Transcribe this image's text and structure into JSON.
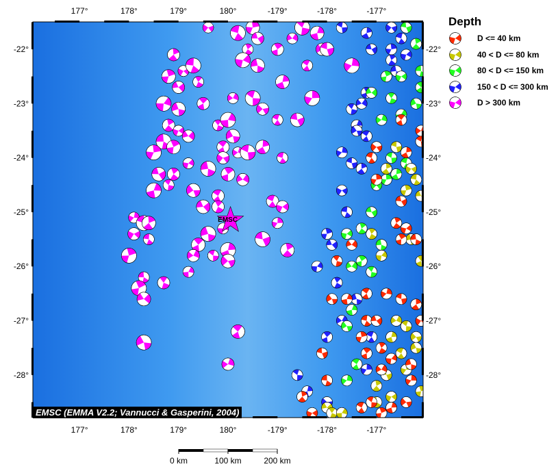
{
  "map": {
    "extent": {
      "lon": [
        176.1,
        -175.9
      ],
      "lat": [
        -28.8,
        -21.5
      ]
    },
    "lon_ticks": [
      {
        "lon": 177,
        "label": "177°"
      },
      {
        "lon": 178,
        "label": "178°"
      },
      {
        "lon": 179,
        "label": "179°"
      },
      {
        "lon": 180,
        "label": "180°"
      },
      {
        "lon": -179,
        "label": "-179°"
      },
      {
        "lon": -178,
        "label": "-178°"
      },
      {
        "lon": -177,
        "label": "-177°"
      }
    ],
    "lat_ticks": [
      {
        "lat": -22,
        "label": "-22°"
      },
      {
        "lat": -23,
        "label": "-23°"
      },
      {
        "lat": -24,
        "label": "-24°"
      },
      {
        "lat": -25,
        "label": "-25°"
      },
      {
        "lat": -26,
        "label": "-26°"
      },
      {
        "lat": -27,
        "label": "-27°"
      },
      {
        "lat": -28,
        "label": "-28°"
      }
    ],
    "ocean_colors": [
      "#1a6fe0",
      "#3f9af0",
      "#6ab4f2"
    ],
    "marker": {
      "label": "EMSC",
      "lon": 180.05,
      "lat": -25.15,
      "color": "#ff00ff"
    },
    "credit": "EMSC (EMMA V2.2; Vannucci & Gasperini, 2004)"
  },
  "legend": {
    "title": "Depth",
    "classes": [
      {
        "label": "D <= 40 km",
        "color": "#ff2a00"
      },
      {
        "label": "40 < D <= 80 km",
        "color": "#c8c800"
      },
      {
        "label": "80 < D <= 150 km",
        "color": "#22ff22"
      },
      {
        "label": "150 < D <= 300 km",
        "color": "#2222ff"
      },
      {
        "label": "D > 300 km",
        "color": "#ff00ff"
      }
    ]
  },
  "scale_bar": {
    "labels": [
      "0 km",
      "100 km",
      "200 km"
    ],
    "km": [
      0,
      100,
      200
    ]
  },
  "events": [
    [
      179.6,
      -21.6,
      4
    ],
    [
      -179.8,
      -21.7,
      4
    ],
    [
      -179.5,
      -21.6,
      4
    ],
    [
      -179.4,
      -21.8,
      4
    ],
    [
      -179.6,
      -22.0,
      4
    ],
    [
      -179.7,
      -22.2,
      4
    ],
    [
      -179.4,
      -22.3,
      4
    ],
    [
      -179.0,
      -22.0,
      4
    ],
    [
      -178.7,
      -21.8,
      4
    ],
    [
      -178.5,
      -21.6,
      4
    ],
    [
      -178.2,
      -21.7,
      4
    ],
    [
      -178.1,
      -22.0,
      4
    ],
    [
      -178.4,
      -22.3,
      4
    ],
    [
      -177.5,
      -22.3,
      4
    ],
    [
      -178.0,
      -22.0,
      4
    ],
    [
      178.9,
      -22.1,
      4
    ],
    [
      179.1,
      -22.4,
      4
    ],
    [
      179.3,
      -22.3,
      4
    ],
    [
      178.8,
      -22.5,
      4
    ],
    [
      179.0,
      -22.7,
      4
    ],
    [
      179.4,
      -22.6,
      4
    ],
    [
      178.7,
      -23.0,
      4
    ],
    [
      179.0,
      -23.1,
      4
    ],
    [
      179.5,
      -23.0,
      4
    ],
    [
      -179.9,
      -22.9,
      4
    ],
    [
      -179.5,
      -22.9,
      4
    ],
    [
      -178.9,
      -22.6,
      4
    ],
    [
      -179.3,
      -23.1,
      4
    ],
    [
      -179.0,
      -23.3,
      4
    ],
    [
      -178.3,
      -22.9,
      4
    ],
    [
      -178.6,
      -23.3,
      4
    ],
    [
      178.8,
      -23.4,
      4
    ],
    [
      179.0,
      -23.5,
      4
    ],
    [
      178.7,
      -23.7,
      4
    ],
    [
      178.9,
      -23.8,
      4
    ],
    [
      179.2,
      -23.6,
      4
    ],
    [
      179.8,
      -23.4,
      4
    ],
    [
      180.0,
      -23.3,
      4
    ],
    [
      -179.9,
      -23.6,
      4
    ],
    [
      179.9,
      -23.8,
      4
    ],
    [
      -179.8,
      -23.9,
      4
    ],
    [
      -179.6,
      -23.9,
      4
    ],
    [
      -179.3,
      -23.8,
      4
    ],
    [
      179.9,
      -24.0,
      4
    ],
    [
      -178.9,
      -24.0,
      4
    ],
    [
      178.5,
      -23.9,
      4
    ],
    [
      178.6,
      -24.3,
      4
    ],
    [
      178.9,
      -24.3,
      4
    ],
    [
      179.2,
      -24.1,
      4
    ],
    [
      179.6,
      -24.2,
      4
    ],
    [
      180.0,
      -24.3,
      4
    ],
    [
      -179.7,
      -24.4,
      4
    ],
    [
      178.8,
      -24.5,
      4
    ],
    [
      178.5,
      -24.6,
      4
    ],
    [
      179.3,
      -24.6,
      4
    ],
    [
      179.8,
      -24.7,
      4
    ],
    [
      178.1,
      -25.1,
      4
    ],
    [
      178.3,
      -25.2,
      4
    ],
    [
      178.4,
      -25.2,
      4
    ],
    [
      178.1,
      -25.4,
      4
    ],
    [
      178.4,
      -25.5,
      4
    ],
    [
      178.0,
      -25.8,
      4
    ],
    [
      179.5,
      -24.9,
      4
    ],
    [
      179.8,
      -24.9,
      4
    ],
    [
      179.9,
      -25.3,
      4
    ],
    [
      179.6,
      -25.4,
      4
    ],
    [
      179.4,
      -25.6,
      4
    ],
    [
      179.3,
      -25.8,
      4
    ],
    [
      179.7,
      -25.8,
      4
    ],
    [
      180.0,
      -25.7,
      4
    ],
    [
      180.0,
      -25.9,
      4
    ],
    [
      -179.1,
      -24.8,
      4
    ],
    [
      -179.0,
      -25.2,
      4
    ],
    [
      -179.3,
      -25.5,
      4
    ],
    [
      -178.8,
      -25.7,
      4
    ],
    [
      -178.9,
      -24.9,
      4
    ],
    [
      178.3,
      -26.2,
      4
    ],
    [
      178.2,
      -26.4,
      4
    ],
    [
      178.3,
      -26.6,
      4
    ],
    [
      178.7,
      -26.3,
      4
    ],
    [
      179.2,
      -26.1,
      4
    ],
    [
      178.3,
      -27.4,
      4
    ],
    [
      -179.8,
      -27.2,
      4
    ],
    [
      180.0,
      -27.8,
      4
    ],
    [
      -177.7,
      -21.6,
      3
    ],
    [
      -177.2,
      -21.7,
      3
    ],
    [
      -176.7,
      -21.6,
      3
    ],
    [
      -176.5,
      -21.8,
      3
    ],
    [
      -176.7,
      -22.0,
      3
    ],
    [
      -177.1,
      -22.0,
      3
    ],
    [
      -176.7,
      -22.2,
      3
    ],
    [
      -176.4,
      -22.1,
      3
    ],
    [
      -176.6,
      -22.4,
      3
    ],
    [
      -177.2,
      -22.8,
      3
    ],
    [
      -177.3,
      -23.0,
      3
    ],
    [
      -177.5,
      -23.1,
      3
    ],
    [
      -177.4,
      -23.4,
      3
    ],
    [
      -177.4,
      -23.5,
      3
    ],
    [
      -177.2,
      -23.6,
      3
    ],
    [
      -177.7,
      -23.9,
      3
    ],
    [
      -177.5,
      -24.1,
      3
    ],
    [
      -177.3,
      -24.2,
      3
    ],
    [
      -177.7,
      -24.6,
      3
    ],
    [
      -177.6,
      -25.0,
      3
    ],
    [
      -178.0,
      -25.4,
      3
    ],
    [
      -177.9,
      -25.6,
      3
    ],
    [
      -177.8,
      -26.3,
      3
    ],
    [
      -178.2,
      -26.0,
      3
    ],
    [
      -177.4,
      -26.6,
      3
    ],
    [
      -178.0,
      -27.3,
      3
    ],
    [
      -177.7,
      -27.0,
      3
    ],
    [
      -178.6,
      -28.0,
      3
    ],
    [
      -178.4,
      -28.3,
      3
    ],
    [
      -178.0,
      -28.5,
      3
    ],
    [
      -177.1,
      -27.3,
      3
    ],
    [
      -177.2,
      -27.9,
      3
    ],
    [
      -176.4,
      -21.6,
      2
    ],
    [
      -176.2,
      -21.9,
      2
    ],
    [
      -176.5,
      -22.5,
      2
    ],
    [
      -176.1,
      -22.4,
      2
    ],
    [
      -176.8,
      -22.5,
      2
    ],
    [
      -177.1,
      -22.8,
      2
    ],
    [
      -176.7,
      -22.9,
      2
    ],
    [
      -176.5,
      -23.2,
      2
    ],
    [
      -176.2,
      -23.0,
      2
    ],
    [
      -176.1,
      -22.7,
      2
    ],
    [
      -176.9,
      -23.3,
      2
    ],
    [
      -176.7,
      -24.0,
      2
    ],
    [
      -176.6,
      -24.3,
      2
    ],
    [
      -177.0,
      -24.5,
      2
    ],
    [
      -176.4,
      -24.1,
      2
    ],
    [
      -176.8,
      -24.4,
      2
    ],
    [
      -177.1,
      -25.0,
      2
    ],
    [
      -177.3,
      -25.3,
      2
    ],
    [
      -177.6,
      -25.4,
      2
    ],
    [
      -176.9,
      -25.6,
      2
    ],
    [
      -177.3,
      -25.9,
      2
    ],
    [
      -177.5,
      -26.0,
      2
    ],
    [
      -177.1,
      -26.1,
      2
    ],
    [
      -177.5,
      -26.8,
      2
    ],
    [
      -177.6,
      -27.1,
      2
    ],
    [
      -177.4,
      -27.8,
      2
    ],
    [
      -177.6,
      -28.1,
      2
    ],
    [
      -176.6,
      -23.8,
      1
    ],
    [
      -176.8,
      -24.2,
      1
    ],
    [
      -176.3,
      -24.2,
      1
    ],
    [
      -176.2,
      -24.4,
      1
    ],
    [
      -176.4,
      -24.6,
      1
    ],
    [
      -176.1,
      -24.7,
      1
    ],
    [
      -177.1,
      -25.4,
      1
    ],
    [
      -176.9,
      -25.8,
      1
    ],
    [
      -176.3,
      -25.5,
      1
    ],
    [
      -176.1,
      -25.9,
      1
    ],
    [
      -176.6,
      -27.0,
      1
    ],
    [
      -176.4,
      -27.1,
      1
    ],
    [
      -176.7,
      -27.3,
      1
    ],
    [
      -176.2,
      -27.3,
      1
    ],
    [
      -176.5,
      -27.6,
      1
    ],
    [
      -176.4,
      -27.9,
      1
    ],
    [
      -176.8,
      -28.0,
      1
    ],
    [
      -177.0,
      -28.2,
      1
    ],
    [
      -176.7,
      -28.4,
      1
    ],
    [
      -177.0,
      -28.5,
      1
    ],
    [
      -176.1,
      -28.3,
      1
    ],
    [
      -178.0,
      -28.6,
      1
    ],
    [
      -177.9,
      -28.7,
      1
    ],
    [
      -177.7,
      -28.7,
      1
    ],
    [
      -176.2,
      -27.5,
      1
    ],
    [
      -176.5,
      -23.3,
      0
    ],
    [
      -176.1,
      -23.5,
      0
    ],
    [
      -176.1,
      -23.7,
      0
    ],
    [
      -176.4,
      -23.9,
      0
    ],
    [
      -177.0,
      -23.8,
      0
    ],
    [
      -177.1,
      -24.0,
      0
    ],
    [
      -177.0,
      -24.4,
      0
    ],
    [
      -176.5,
      -24.8,
      0
    ],
    [
      -176.6,
      -25.2,
      0
    ],
    [
      -176.4,
      -25.3,
      0
    ],
    [
      -176.2,
      -25.5,
      0
    ],
    [
      -176.5,
      -25.5,
      0
    ],
    [
      -177.5,
      -25.6,
      0
    ],
    [
      -177.8,
      -25.9,
      0
    ],
    [
      -177.6,
      -26.6,
      0
    ],
    [
      -177.9,
      -26.6,
      0
    ],
    [
      -177.2,
      -26.5,
      0
    ],
    [
      -176.8,
      -26.5,
      0
    ],
    [
      -176.5,
      -26.6,
      0
    ],
    [
      -176.2,
      -26.7,
      0
    ],
    [
      -176.1,
      -27.0,
      0
    ],
    [
      -177.2,
      -27.0,
      0
    ],
    [
      -177.3,
      -27.3,
      0
    ],
    [
      -177.0,
      -27.0,
      0
    ],
    [
      -176.9,
      -27.5,
      0
    ],
    [
      -176.7,
      -27.7,
      0
    ],
    [
      -176.3,
      -27.8,
      0
    ],
    [
      -177.2,
      -27.6,
      0
    ],
    [
      -176.9,
      -27.9,
      0
    ],
    [
      -177.1,
      -28.5,
      0
    ],
    [
      -176.7,
      -28.6,
      0
    ],
    [
      -176.4,
      -28.5,
      0
    ],
    [
      -177.3,
      -28.6,
      0
    ],
    [
      -176.3,
      -28.1,
      0
    ],
    [
      -178.1,
      -27.6,
      0
    ],
    [
      -178.5,
      -28.4,
      0
    ],
    [
      -178.3,
      -28.7,
      0
    ],
    [
      -178.0,
      -28.1,
      0
    ],
    [
      -176.9,
      -28.7,
      0
    ]
  ]
}
